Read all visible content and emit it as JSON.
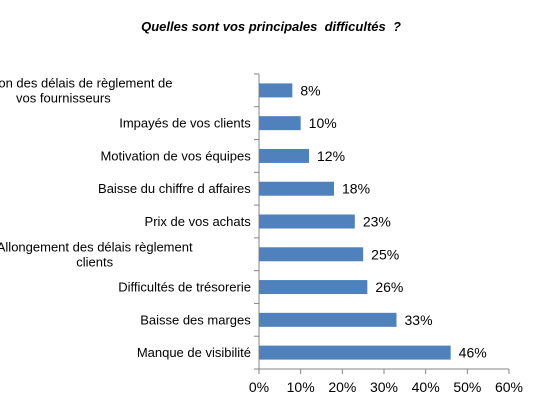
{
  "chart_data": {
    "type": "bar",
    "orientation": "horizontal",
    "title": "Quelles sont vos principales  difficultés  ?",
    "xlabel": "",
    "ylabel": "",
    "xlim": [
      0,
      60
    ],
    "x_ticks": [
      "0%",
      "10%",
      "20%",
      "30%",
      "40%",
      "50%",
      "60%"
    ],
    "grid": false,
    "legend": "none",
    "bar_color": "#4F81BD",
    "categories": [
      [
        "Réduction des délais de règlement de",
        "vos fournisseurs"
      ],
      [
        "Impayés de vos clients"
      ],
      [
        "Motivation de vos équipes"
      ],
      [
        "Baisse du chiffre d affaires"
      ],
      [
        "Prix de vos achats"
      ],
      [
        "Allongement des délais règlement",
        "clients"
      ],
      [
        "Difficultés de trésorerie"
      ],
      [
        "Baisse des marges"
      ],
      [
        "Manque de visibilité"
      ]
    ],
    "values": [
      8,
      10,
      12,
      18,
      23,
      25,
      26,
      33,
      46
    ],
    "value_labels": [
      "8%",
      "10%",
      "12%",
      "18%",
      "23%",
      "25%",
      "26%",
      "33%",
      "46%"
    ]
  }
}
